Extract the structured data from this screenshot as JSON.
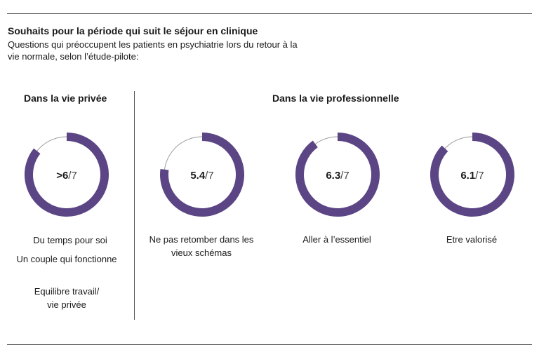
{
  "header": {
    "title": "Souhaits pour la période qui suit le séjour en clinique",
    "subtitle": "Questions qui préoccupent les patients en psychiatrie lors du retour à la vie normale, selon l’étude-pilote:"
  },
  "sections": {
    "private": "Dans la vie privée",
    "professional": "Dans la vie professionnelle"
  },
  "colors": {
    "filled": "#5b4585",
    "remaining": "#9a9a9a",
    "text": "#1a1a1a"
  },
  "chart_data": {
    "type": "donut",
    "max": 7,
    "items": [
      {
        "section": "Dans la vie privée",
        "value": 6,
        "display_prefix": ">",
        "display_value": "6",
        "display_suffix": "/7",
        "labels": [
          "Du temps pour soi",
          "Un couple qui fonctionne",
          "Equilibre travail/ vie privée"
        ]
      },
      {
        "section": "Dans la vie professionnelle",
        "value": 5.4,
        "display_prefix": "",
        "display_value": "5.4",
        "display_suffix": "/7",
        "labels": [
          "Ne pas retomber dans les vieux schémas"
        ]
      },
      {
        "section": "Dans la vie professionnelle",
        "value": 6.3,
        "display_prefix": "",
        "display_value": "6.3",
        "display_suffix": "/7",
        "labels": [
          "Aller à l’essentiel"
        ]
      },
      {
        "section": "Dans la vie professionnelle",
        "value": 6.1,
        "display_prefix": "",
        "display_value": "6.1",
        "display_suffix": "/7",
        "labels": [
          "Etre valorisé"
        ]
      }
    ]
  }
}
